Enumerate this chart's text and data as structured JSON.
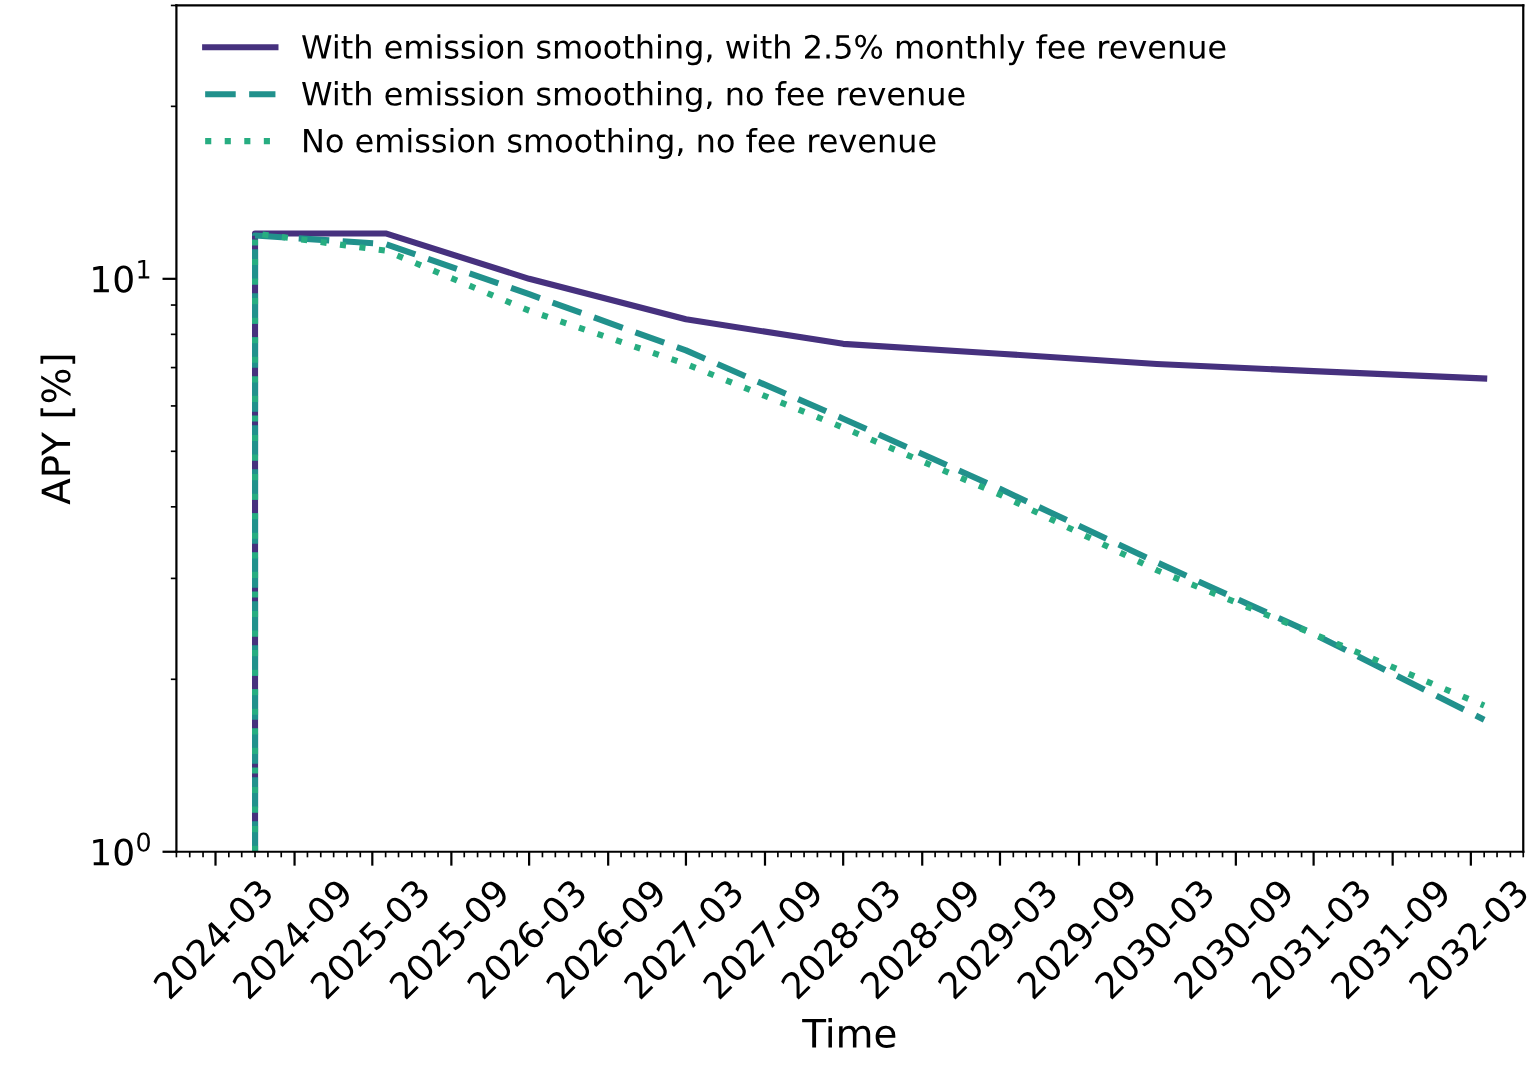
{
  "chart_data": {
    "type": "line",
    "xlabel": "Time",
    "ylabel": "APY [%]",
    "log": "y",
    "legend": "top left",
    "grid": false,
    "xlim": [
      "2023-12",
      "2032-07"
    ],
    "xticks": [
      "2024-03",
      "2024-09",
      "2025-03",
      "2025-09",
      "2026-03",
      "2026-09",
      "2027-03",
      "2027-09",
      "2028-03",
      "2028-09",
      "2029-03",
      "2029-09",
      "2030-03",
      "2030-09",
      "2031-03",
      "2031-09",
      "2032-03"
    ],
    "ylim": [
      1,
      30
    ],
    "yticks": [
      {
        "value": 1,
        "label": "10$^{0}$"
      },
      {
        "value": 10,
        "label": "10$^{1}$"
      }
    ],
    "x": [
      "2024-06",
      "2024-06",
      "2025-04",
      "2026-03",
      "2027-03",
      "2028-03",
      "2029-03",
      "2030-03",
      "2031-03",
      "2032-04"
    ],
    "series": [
      {
        "name": "With emission smoothing, with 2.5% monthly fee revenue",
        "color": "#46317e",
        "line_style": "solid",
        "values": [
          1,
          12.0,
          12.0,
          10.0,
          8.5,
          7.7,
          7.4,
          7.1,
          6.9,
          6.7
        ]
      },
      {
        "name": "With emission smoothing, no fee revenue",
        "color": "#21918c",
        "line_style": "dashed",
        "values": [
          1,
          11.9,
          11.5,
          9.4,
          7.5,
          5.7,
          4.3,
          3.2,
          2.4,
          1.7
        ]
      },
      {
        "name": "No emission smoothing, no fee revenue",
        "color": "#27ad81",
        "line_style": "dotted",
        "values": [
          1,
          12.0,
          11.2,
          8.8,
          7.1,
          5.5,
          4.2,
          3.1,
          2.4,
          1.8
        ]
      }
    ]
  }
}
